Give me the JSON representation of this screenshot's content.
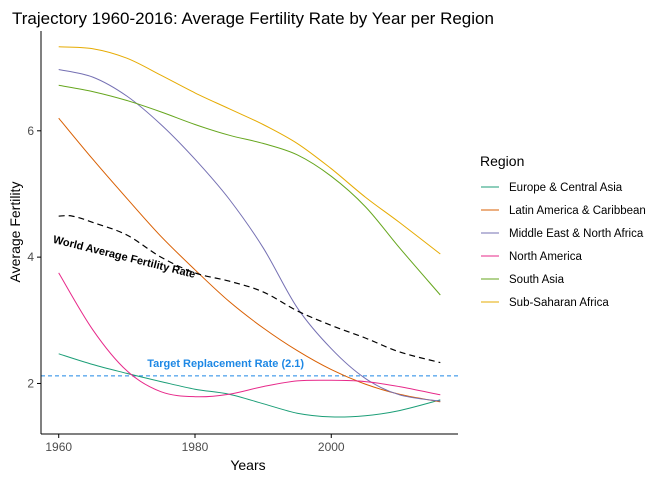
{
  "chart_data": {
    "type": "line",
    "title": "Trajectory 1960-2016: Average Fertility Rate by Year per Region",
    "xlabel": "Years",
    "ylabel": "Average Fertility",
    "xlim": [
      1957.4,
      2018.6
    ],
    "ylim": [
      1.2,
      7.58
    ],
    "xticks": [
      1960,
      1980,
      2000
    ],
    "yticks": [
      2,
      4,
      6
    ],
    "grid": false,
    "legend": {
      "title": "Region",
      "position": "right"
    },
    "series": [
      {
        "name": "Europe & Central Asia",
        "color": "#1b9e77",
        "x": [
          1960,
          1965,
          1970,
          1975,
          1980,
          1985,
          1990,
          1995,
          2000,
          2005,
          2010,
          2016
        ],
        "y": [
          2.47,
          2.3,
          2.16,
          2.03,
          1.91,
          1.83,
          1.68,
          1.53,
          1.47,
          1.49,
          1.57,
          1.74
        ]
      },
      {
        "name": "Latin America & Caribbean",
        "color": "#d95f02",
        "x": [
          1960,
          1965,
          1970,
          1975,
          1980,
          1985,
          1990,
          1995,
          2000,
          2005,
          2010,
          2016
        ],
        "y": [
          6.2,
          5.55,
          4.93,
          4.33,
          3.8,
          3.3,
          2.88,
          2.52,
          2.22,
          1.99,
          1.83,
          1.71
        ]
      },
      {
        "name": "Middle East & North Africa",
        "color": "#7570b3",
        "x": [
          1960,
          1965,
          1970,
          1975,
          1980,
          1985,
          1990,
          1995,
          2000,
          2005,
          2010,
          2016
        ],
        "y": [
          6.97,
          6.85,
          6.55,
          6.1,
          5.55,
          4.92,
          4.15,
          3.2,
          2.55,
          2.08,
          1.82,
          1.72
        ]
      },
      {
        "name": "North America",
        "color": "#e7298a",
        "x": [
          1960,
          1965,
          1970,
          1975,
          1980,
          1985,
          1990,
          1995,
          2000,
          2005,
          2010,
          2016
        ],
        "y": [
          3.75,
          2.85,
          2.2,
          1.87,
          1.79,
          1.83,
          1.95,
          2.04,
          2.05,
          2.03,
          1.95,
          1.82
        ]
      },
      {
        "name": "South Asia",
        "color": "#66a61e",
        "x": [
          1960,
          1965,
          1970,
          1975,
          1980,
          1985,
          1990,
          1995,
          2000,
          2005,
          2010,
          2016
        ],
        "y": [
          6.72,
          6.62,
          6.48,
          6.3,
          6.1,
          5.93,
          5.8,
          5.62,
          5.28,
          4.8,
          4.15,
          3.4
        ]
      },
      {
        "name": "Sub-Saharan Africa",
        "color": "#e6ab02",
        "x": [
          1960,
          1965,
          1970,
          1975,
          1980,
          1985,
          1990,
          1995,
          2000,
          2005,
          2010,
          2016
        ],
        "y": [
          7.33,
          7.3,
          7.15,
          6.88,
          6.6,
          6.35,
          6.1,
          5.8,
          5.4,
          4.95,
          4.55,
          4.05
        ]
      }
    ],
    "world_average": {
      "color": "#000000",
      "x": [
        1960,
        1962,
        1965,
        1970,
        1975,
        1980,
        1985,
        1990,
        1995,
        2000,
        2005,
        2010,
        2016
      ],
      "y": [
        4.65,
        4.65,
        4.55,
        4.35,
        4.0,
        3.75,
        3.62,
        3.45,
        3.15,
        2.92,
        2.72,
        2.5,
        2.33
      ]
    },
    "annotations": [
      {
        "text": "World Average Fertility Rate",
        "x": 1969.5,
        "y": 3.95,
        "angle": 14,
        "color": "#000000"
      },
      {
        "text": "Target Replacement Rate (2.1)",
        "x": 1984.5,
        "y": 2.26,
        "color": "#1e88e5"
      }
    ],
    "reference_line": {
      "y": 2.12,
      "color": "#1e88e5",
      "style": "dashed"
    }
  }
}
